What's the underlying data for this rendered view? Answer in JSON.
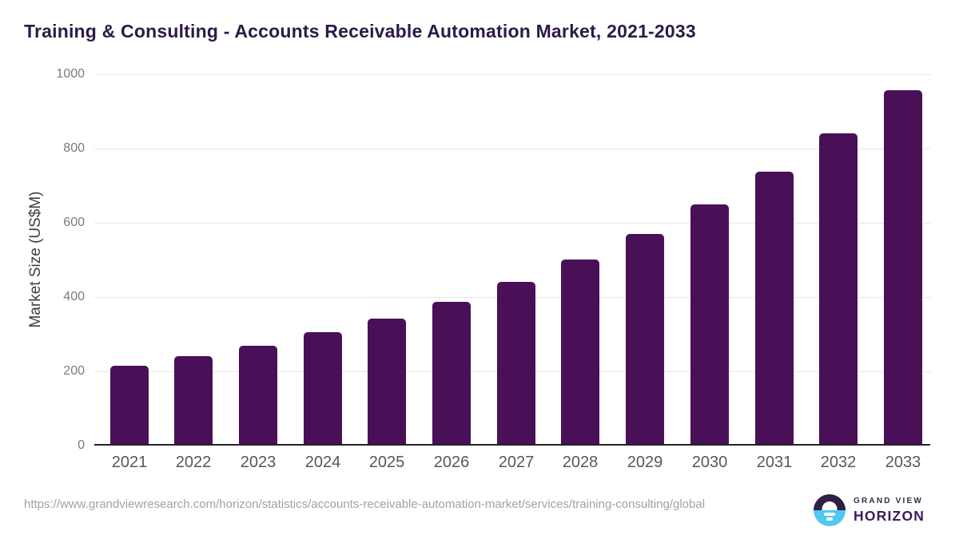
{
  "page": {
    "title": "Training & Consulting - Accounts Receivable Automation Market, 2021-2033"
  },
  "chart_data": {
    "type": "bar",
    "title": "Training & Consulting - Accounts Receivable Automation Market, 2021-2033",
    "categories": [
      "2021",
      "2022",
      "2023",
      "2024",
      "2025",
      "2026",
      "2027",
      "2028",
      "2029",
      "2030",
      "2031",
      "2032",
      "2033"
    ],
    "values": [
      215,
      240,
      269,
      305,
      342,
      388,
      441,
      501,
      570,
      650,
      737,
      840,
      958
    ],
    "xlabel": "",
    "ylabel": "Market Size (US$M)",
    "ylim": [
      0,
      1000
    ],
    "y_ticks": [
      0,
      200,
      400,
      600,
      800,
      1000
    ],
    "grid": true,
    "legend_position": "none",
    "bar_color": "#491058"
  },
  "footer": {
    "source_url": "https://www.grandviewresearch.com/horizon/statistics/accounts-receivable-automation-market/services/training-consulting/global",
    "logo": {
      "brand_top": "GRAND VIEW",
      "brand_bottom": "HORIZON"
    }
  },
  "colors": {
    "bar": "#491058",
    "title": "#2d1a47",
    "axis_line": "#222222",
    "gridline": "#e7e7e7",
    "tick_label": "#7b7b7b",
    "x_label": "#575757",
    "source_text": "#a2a2a2",
    "logo_dark": "#2f2144",
    "logo_blue": "#4fc8f4",
    "logo_grandview_text": "#2f2c52",
    "logo_horizon_text": "#3a1c5c"
  }
}
